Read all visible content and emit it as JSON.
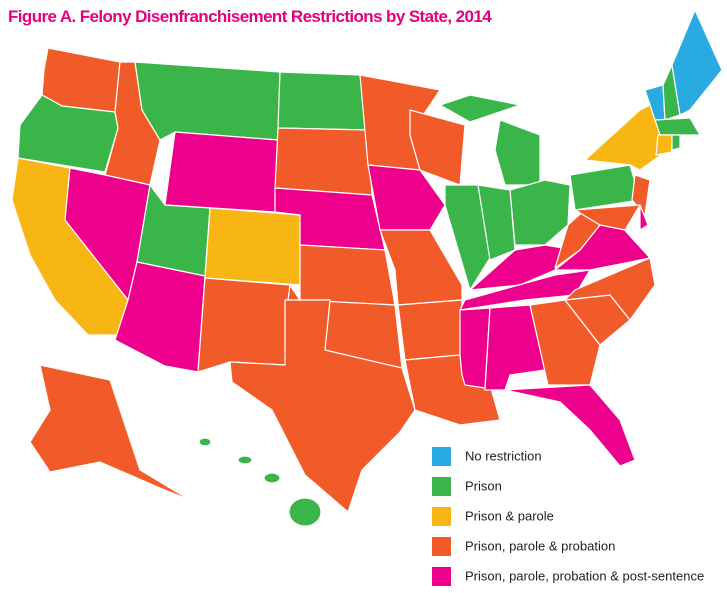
{
  "title": "Figure A. Felony Disenfranchisement Restrictions by State, 2014",
  "title_color": "#e6007e",
  "legend": [
    {
      "label": "No restriction",
      "color": "#29abe2"
    },
    {
      "label": "Prison",
      "color": "#3ab54a"
    },
    {
      "label": "Prison & parole",
      "color": "#f7b614"
    },
    {
      "label": "Prison, parole & probation",
      "color": "#f15a29"
    },
    {
      "label": "Prison, parole, probation & post-sentence",
      "color": "#ec008c"
    }
  ]
}
